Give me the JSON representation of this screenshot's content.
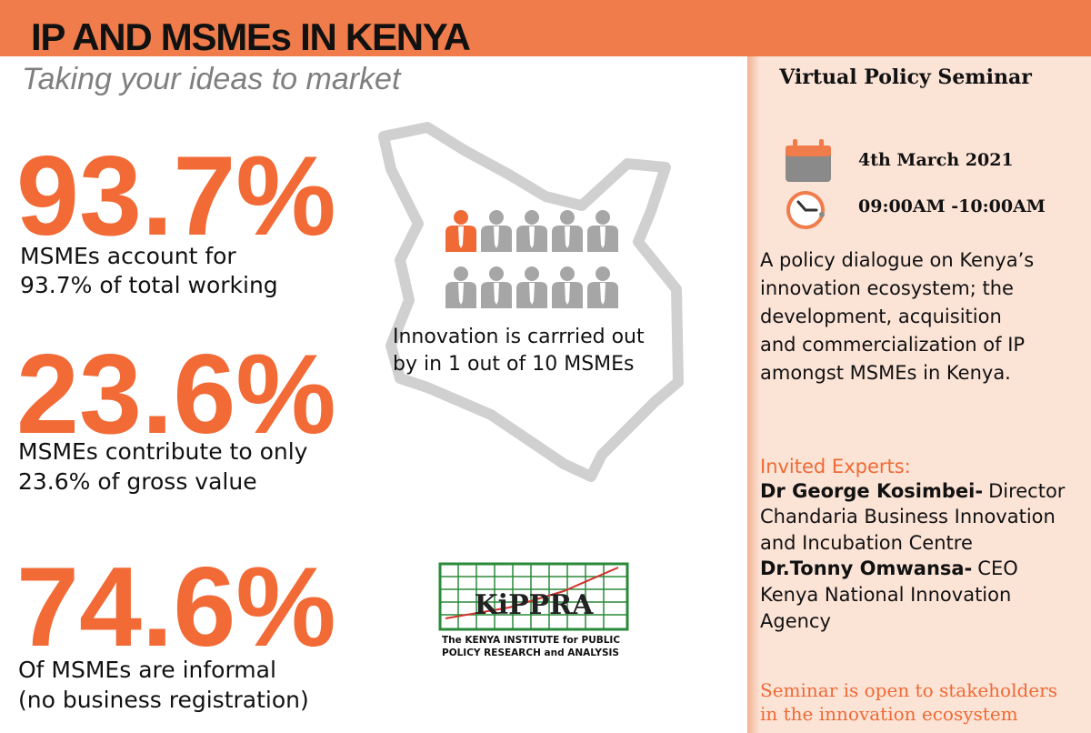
{
  "header": {
    "title": "IP AND MSMEs IN KENYA",
    "subtitle": "Taking your ideas to market"
  },
  "stats": [
    {
      "value": "93.7%",
      "lines": [
        "MSMEs account for",
        "93.7% of total working"
      ]
    },
    {
      "value": "23.6%",
      "lines": [
        "MSMEs contribute to only",
        "23.6% of gross value"
      ]
    },
    {
      "value": "74.6%",
      "lines": [
        "Of MSMEs are informal",
        "(no business registration)"
      ]
    }
  ],
  "innovation": {
    "lines": [
      "Innovation is carrried out",
      "by in 1 out of 10 MSMEs"
    ]
  },
  "logo": {
    "name": "KiPPRA",
    "lines": [
      "The KENYA INSTITUTE for PUBLIC",
      "POLICY RESEARCH and ANALYSIS"
    ]
  },
  "seminar": {
    "title": "Virtual Policy Seminar",
    "date": "4th March 2021",
    "time": "09:00AM -10:00AM",
    "description": [
      "A policy dialogue on Kenya’s",
      "innovation ecosystem; the",
      "development, acquisition",
      "and commercialization of IP",
      "amongst MSMEs in Kenya."
    ],
    "experts_heading": "Invited Experts:",
    "experts": [
      {
        "name": "Dr George Kosimbei-",
        "role": "Director",
        "lines": [
          "Chandaria Business Innovation",
          "and Incubation Centre"
        ]
      },
      {
        "name": "Dr.Tonny Omwansa-",
        "role": "CEO",
        "lines": [
          "Kenya National Innovation",
          "Agency"
        ]
      }
    ],
    "note": [
      "Seminar is open to stakeholders",
      "in the innovation ecosystem"
    ]
  }
}
